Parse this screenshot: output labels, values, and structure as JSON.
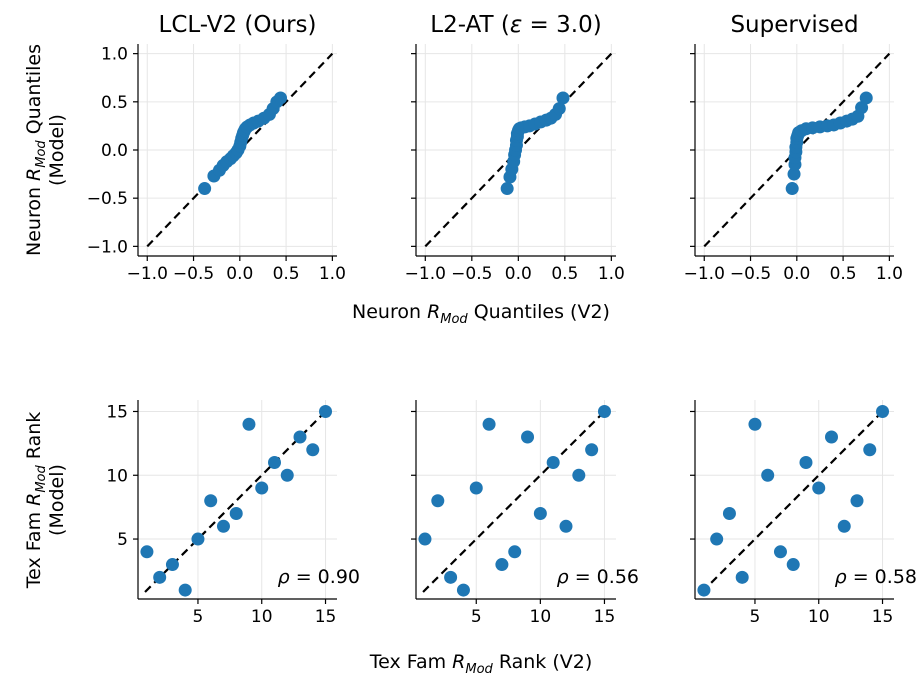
{
  "colors": {
    "points": "#1f77b4",
    "diagonal": "#000000",
    "grid": "#e6e6e6",
    "axis": "#000000"
  },
  "labels": {
    "top_xlabel_pre": "Neuron ",
    "top_xlabel_post": " Quantiles (V2)",
    "top_ylabel_pre": "Neuron ",
    "top_ylabel_post": " Quantiles",
    "top_ylabel_line2": "(Model)",
    "bottom_xlabel_pre": "Tex Fam ",
    "bottom_xlabel_post": " Rank (V2)",
    "bottom_ylabel_pre": "Tex Fam ",
    "bottom_ylabel_post": " Rank",
    "bottom_ylabel_line2": "(Model)",
    "rmod_R": "R",
    "rmod_sub": "Mod"
  },
  "chart_data": [
    {
      "type": "scatter",
      "title": "LCL-V2 (Ours)",
      "title_parts": [
        "LCL-V2 (Ours)"
      ],
      "xlim": [
        -1.1,
        1.05
      ],
      "ylim": [
        -1.1,
        1.1
      ],
      "xticks": [
        -1.0,
        -0.5,
        0.0,
        0.5,
        1.0
      ],
      "xticklabels": [
        "−1.0",
        "−0.5",
        "0.0",
        "0.5",
        "1.0"
      ],
      "yticks": [
        -1.0,
        -0.5,
        0.0,
        0.5,
        1.0
      ],
      "yticklabels": [
        "−1.0",
        "−0.5",
        "0.0",
        "0.5",
        "1.0"
      ],
      "show_yticklabels": true,
      "grid": true,
      "diagonal": true,
      "annotation": "",
      "points": [
        [
          -0.38,
          -0.4
        ],
        [
          -0.28,
          -0.27
        ],
        [
          -0.22,
          -0.21
        ],
        [
          -0.18,
          -0.16
        ],
        [
          -0.14,
          -0.12
        ],
        [
          -0.1,
          -0.09
        ],
        [
          -0.07,
          -0.06
        ],
        [
          -0.04,
          -0.03
        ],
        [
          -0.02,
          0.0
        ],
        [
          0.0,
          0.04
        ],
        [
          0.01,
          0.08
        ],
        [
          0.02,
          0.12
        ],
        [
          0.03,
          0.15
        ],
        [
          0.04,
          0.18
        ],
        [
          0.05,
          0.2
        ],
        [
          0.06,
          0.22
        ],
        [
          0.08,
          0.24
        ],
        [
          0.11,
          0.26
        ],
        [
          0.15,
          0.28
        ],
        [
          0.2,
          0.3
        ],
        [
          0.26,
          0.33
        ],
        [
          0.32,
          0.37
        ],
        [
          0.36,
          0.43
        ],
        [
          0.4,
          0.5
        ],
        [
          0.44,
          0.54
        ]
      ]
    },
    {
      "type": "scatter",
      "title": "L2-AT (ε = 3.0)",
      "title_parts": [
        "L2-AT (",
        "ε",
        " = 3.0)"
      ],
      "xlim": [
        -1.1,
        1.05
      ],
      "ylim": [
        -1.1,
        1.1
      ],
      "xticks": [
        -1.0,
        -0.5,
        0.0,
        0.5,
        1.0
      ],
      "xticklabels": [
        "−1.0",
        "−0.5",
        "0.0",
        "0.5",
        "1.0"
      ],
      "yticks": [
        -1.0,
        -0.5,
        0.0,
        0.5,
        1.0
      ],
      "yticklabels": [
        "−1.0",
        "−0.5",
        "0.0",
        "0.5",
        "1.0"
      ],
      "show_yticklabels": false,
      "grid": true,
      "diagonal": true,
      "annotation": "",
      "points": [
        [
          -0.12,
          -0.4
        ],
        [
          -0.09,
          -0.28
        ],
        [
          -0.07,
          -0.2
        ],
        [
          -0.05,
          -0.12
        ],
        [
          -0.04,
          -0.05
        ],
        [
          -0.03,
          0.0
        ],
        [
          -0.02,
          0.05
        ],
        [
          -0.02,
          0.1
        ],
        [
          -0.01,
          0.14
        ],
        [
          -0.01,
          0.17
        ],
        [
          0.0,
          0.2
        ],
        [
          0.01,
          0.22
        ],
        [
          0.03,
          0.23
        ],
        [
          0.07,
          0.24
        ],
        [
          0.12,
          0.25
        ],
        [
          0.18,
          0.27
        ],
        [
          0.24,
          0.29
        ],
        [
          0.3,
          0.31
        ],
        [
          0.35,
          0.33
        ],
        [
          0.4,
          0.37
        ],
        [
          0.44,
          0.43
        ],
        [
          0.48,
          0.54
        ]
      ]
    },
    {
      "type": "scatter",
      "title": "Supervised",
      "title_parts": [
        "Supervised"
      ],
      "xlim": [
        -1.1,
        1.05
      ],
      "ylim": [
        -1.1,
        1.1
      ],
      "xticks": [
        -1.0,
        -0.5,
        0.0,
        0.5,
        1.0
      ],
      "xticklabels": [
        "−1.0",
        "−0.5",
        "0.0",
        "0.5",
        "1.0"
      ],
      "yticks": [
        -1.0,
        -0.5,
        0.0,
        0.5,
        1.0
      ],
      "yticklabels": [
        "−1.0",
        "−0.5",
        "0.0",
        "0.5",
        "1.0"
      ],
      "show_yticklabels": false,
      "grid": true,
      "diagonal": true,
      "annotation": "",
      "points": [
        [
          -0.05,
          -0.4
        ],
        [
          -0.03,
          -0.25
        ],
        [
          -0.02,
          -0.15
        ],
        [
          -0.02,
          -0.08
        ],
        [
          -0.01,
          -0.02
        ],
        [
          -0.01,
          0.03
        ],
        [
          0.0,
          0.08
        ],
        [
          0.0,
          0.12
        ],
        [
          0.01,
          0.15
        ],
        [
          0.02,
          0.18
        ],
        [
          0.05,
          0.2
        ],
        [
          0.1,
          0.22
        ],
        [
          0.17,
          0.23
        ],
        [
          0.25,
          0.24
        ],
        [
          0.33,
          0.25
        ],
        [
          0.4,
          0.26
        ],
        [
          0.47,
          0.28
        ],
        [
          0.54,
          0.3
        ],
        [
          0.6,
          0.32
        ],
        [
          0.66,
          0.35
        ],
        [
          0.7,
          0.44
        ],
        [
          0.75,
          0.54
        ]
      ]
    },
    {
      "type": "scatter",
      "title": "",
      "xlim": [
        0.3,
        15.9
      ],
      "ylim": [
        0.3,
        15.9
      ],
      "xticks": [
        5,
        10,
        15
      ],
      "xticklabels": [
        "5",
        "10",
        "15"
      ],
      "yticks": [
        5,
        10,
        15
      ],
      "yticklabels": [
        "5",
        "10",
        "15"
      ],
      "show_yticklabels": true,
      "grid": true,
      "diagonal": true,
      "annotation_rho": "ρ",
      "annotation_value": " = 0.90",
      "points": [
        [
          1,
          4
        ],
        [
          2,
          2
        ],
        [
          3,
          3
        ],
        [
          4,
          1
        ],
        [
          5,
          5
        ],
        [
          6,
          8
        ],
        [
          7,
          6
        ],
        [
          8,
          7
        ],
        [
          9,
          14
        ],
        [
          10,
          9
        ],
        [
          11,
          11
        ],
        [
          12,
          10
        ],
        [
          13,
          13
        ],
        [
          14,
          12
        ],
        [
          15,
          15
        ]
      ]
    },
    {
      "type": "scatter",
      "title": "",
      "xlim": [
        0.3,
        15.9
      ],
      "ylim": [
        0.3,
        15.9
      ],
      "xticks": [
        5,
        10,
        15
      ],
      "xticklabels": [
        "5",
        "10",
        "15"
      ],
      "yticks": [
        5,
        10,
        15
      ],
      "yticklabels": [
        "5",
        "10",
        "15"
      ],
      "show_yticklabels": false,
      "grid": true,
      "diagonal": true,
      "annotation_rho": "ρ",
      "annotation_value": " = 0.56",
      "points": [
        [
          1,
          5
        ],
        [
          2,
          8
        ],
        [
          3,
          2
        ],
        [
          4,
          1
        ],
        [
          5,
          9
        ],
        [
          6,
          14
        ],
        [
          7,
          3
        ],
        [
          8,
          4
        ],
        [
          9,
          13
        ],
        [
          10,
          7
        ],
        [
          11,
          11
        ],
        [
          12,
          6
        ],
        [
          13,
          10
        ],
        [
          14,
          12
        ],
        [
          15,
          15
        ]
      ]
    },
    {
      "type": "scatter",
      "title": "",
      "xlim": [
        0.3,
        15.9
      ],
      "ylim": [
        0.3,
        15.9
      ],
      "xticks": [
        5,
        10,
        15
      ],
      "xticklabels": [
        "5",
        "10",
        "15"
      ],
      "yticks": [
        5,
        10,
        15
      ],
      "yticklabels": [
        "5",
        "10",
        "15"
      ],
      "show_yticklabels": false,
      "grid": true,
      "diagonal": true,
      "annotation_rho": "ρ",
      "annotation_value": " = 0.58",
      "points": [
        [
          1,
          1
        ],
        [
          2,
          5
        ],
        [
          3,
          7
        ],
        [
          4,
          2
        ],
        [
          5,
          14
        ],
        [
          6,
          10
        ],
        [
          7,
          4
        ],
        [
          8,
          3
        ],
        [
          9,
          11
        ],
        [
          10,
          9
        ],
        [
          11,
          13
        ],
        [
          12,
          6
        ],
        [
          13,
          8
        ],
        [
          14,
          12
        ],
        [
          15,
          15
        ]
      ]
    }
  ]
}
